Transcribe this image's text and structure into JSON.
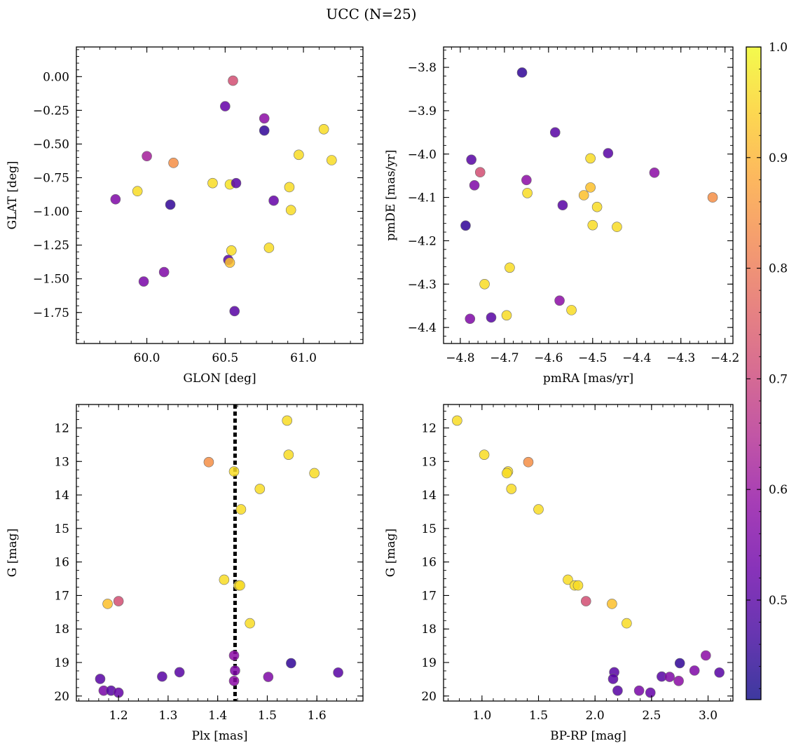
{
  "figure": {
    "title": "UCC (N=25)"
  },
  "colorbar": {
    "range": [
      0.41,
      1.0
    ],
    "ticks": [
      0.5,
      0.6,
      0.7,
      0.8,
      0.9,
      1.0
    ],
    "tick_labels": [
      "0.5",
      "0.6",
      "0.7",
      "0.8",
      "0.9",
      "1.0"
    ],
    "colormap": "plasma"
  },
  "chart_data": [
    {
      "type": "scatter",
      "panel": "top-left",
      "xlabel": "GLON [deg]",
      "ylabel": "GLAT [deg]",
      "xlim": [
        59.55,
        61.38
      ],
      "ylim": [
        -1.98,
        0.22
      ],
      "xticks": [
        60.0,
        60.5,
        61.0
      ],
      "xtick_labels": [
        "60.0",
        "60.5",
        "61.0"
      ],
      "yticks": [
        0.0,
        -0.25,
        -0.5,
        -0.75,
        -1.0,
        -1.25,
        -1.5,
        -1.75
      ],
      "ytick_labels": [
        "0.00",
        "−0.25",
        "−0.50",
        "−0.75",
        "−1.00",
        "−1.25",
        "−1.50",
        "−1.75"
      ],
      "points": [
        {
          "x": 60.55,
          "y": -0.03,
          "c": 0.72
        },
        {
          "x": 60.5,
          "y": -0.22,
          "c": 0.52
        },
        {
          "x": 60.75,
          "y": -0.31,
          "c": 0.58
        },
        {
          "x": 60.75,
          "y": -0.4,
          "c": 0.45
        },
        {
          "x": 61.13,
          "y": -0.39,
          "c": 0.96
        },
        {
          "x": 60.97,
          "y": -0.58,
          "c": 0.96
        },
        {
          "x": 61.18,
          "y": -0.62,
          "c": 0.96
        },
        {
          "x": 60.0,
          "y": -0.59,
          "c": 0.62
        },
        {
          "x": 60.17,
          "y": -0.64,
          "c": 0.84
        },
        {
          "x": 60.42,
          "y": -0.79,
          "c": 0.96
        },
        {
          "x": 60.53,
          "y": -0.8,
          "c": 0.97
        },
        {
          "x": 60.57,
          "y": -0.79,
          "c": 0.5
        },
        {
          "x": 60.91,
          "y": -0.82,
          "c": 0.96
        },
        {
          "x": 59.94,
          "y": -0.85,
          "c": 0.96
        },
        {
          "x": 59.8,
          "y": -0.91,
          "c": 0.56
        },
        {
          "x": 60.15,
          "y": -0.95,
          "c": 0.45
        },
        {
          "x": 60.81,
          "y": -0.92,
          "c": 0.52
        },
        {
          "x": 60.92,
          "y": -0.99,
          "c": 0.96
        },
        {
          "x": 60.54,
          "y": -1.29,
          "c": 0.96
        },
        {
          "x": 60.78,
          "y": -1.27,
          "c": 0.96
        },
        {
          "x": 60.52,
          "y": -1.36,
          "c": 0.5
        },
        {
          "x": 60.53,
          "y": -1.38,
          "c": 0.92
        },
        {
          "x": 60.11,
          "y": -1.45,
          "c": 0.56
        },
        {
          "x": 59.98,
          "y": -1.52,
          "c": 0.55
        },
        {
          "x": 60.56,
          "y": -1.74,
          "c": 0.5
        }
      ]
    },
    {
      "type": "scatter",
      "panel": "top-right",
      "xlabel": "pmRA [mas/yr]",
      "ylabel": "pmDE [mas/yr]",
      "xlim": [
        -4.838,
        -4.182
      ],
      "ylim": [
        -4.437,
        -3.753
      ],
      "xticks": [
        -4.8,
        -4.7,
        -4.6,
        -4.5,
        -4.4,
        -4.3,
        -4.2
      ],
      "xtick_labels": [
        "−4.8",
        "−4.7",
        "−4.6",
        "−4.5",
        "−4.4",
        "−4.3",
        "−4.2"
      ],
      "yticks": [
        -3.8,
        -3.9,
        -4.0,
        -4.1,
        -4.2,
        -4.3,
        -4.4
      ],
      "ytick_labels": [
        "−3.8",
        "−3.9",
        "−4.0",
        "−4.1",
        "−4.2",
        "−4.3",
        "−4.4"
      ],
      "points": [
        {
          "x": -4.66,
          "y": -3.812,
          "c": 0.45
        },
        {
          "x": -4.585,
          "y": -3.95,
          "c": 0.5
        },
        {
          "x": -4.465,
          "y": -3.998,
          "c": 0.5
        },
        {
          "x": -4.775,
          "y": -4.013,
          "c": 0.5
        },
        {
          "x": -4.505,
          "y": -4.01,
          "c": 0.96
        },
        {
          "x": -4.755,
          "y": -4.042,
          "c": 0.72
        },
        {
          "x": -4.36,
          "y": -4.043,
          "c": 0.58
        },
        {
          "x": -4.65,
          "y": -4.06,
          "c": 0.58
        },
        {
          "x": -4.768,
          "y": -4.072,
          "c": 0.56
        },
        {
          "x": -4.505,
          "y": -4.077,
          "c": 0.92
        },
        {
          "x": -4.648,
          "y": -4.09,
          "c": 0.96
        },
        {
          "x": -4.52,
          "y": -4.095,
          "c": 0.92
        },
        {
          "x": -4.228,
          "y": -4.1,
          "c": 0.84
        },
        {
          "x": -4.568,
          "y": -4.118,
          "c": 0.5
        },
        {
          "x": -4.49,
          "y": -4.122,
          "c": 0.96
        },
        {
          "x": -4.5,
          "y": -4.164,
          "c": 0.96
        },
        {
          "x": -4.445,
          "y": -4.168,
          "c": 0.96
        },
        {
          "x": -4.788,
          "y": -4.165,
          "c": 0.45
        },
        {
          "x": -4.688,
          "y": -4.262,
          "c": 0.96
        },
        {
          "x": -4.745,
          "y": -4.3,
          "c": 0.96
        },
        {
          "x": -4.575,
          "y": -4.338,
          "c": 0.58
        },
        {
          "x": -4.548,
          "y": -4.36,
          "c": 0.96
        },
        {
          "x": -4.695,
          "y": -4.372,
          "c": 0.96
        },
        {
          "x": -4.778,
          "y": -4.38,
          "c": 0.56
        },
        {
          "x": -4.73,
          "y": -4.377,
          "c": 0.5
        }
      ]
    },
    {
      "type": "scatter",
      "panel": "bottom-left",
      "xlabel": "Plx [mas]",
      "ylabel": "G [mag]",
      "xlim": [
        1.115,
        1.693
      ],
      "ylim": [
        20.15,
        11.3
      ],
      "xticks": [
        1.2,
        1.3,
        1.4,
        1.5,
        1.6
      ],
      "xtick_labels": [
        "1.2",
        "1.3",
        "1.4",
        "1.5",
        "1.6"
      ],
      "yticks": [
        12,
        13,
        14,
        15,
        16,
        17,
        18,
        19,
        20
      ],
      "ytick_labels": [
        "12",
        "13",
        "14",
        "15",
        "16",
        "17",
        "18",
        "19",
        "20"
      ],
      "vline": 1.435,
      "points": [
        {
          "x": 1.54,
          "y": 11.78,
          "c": 0.96
        },
        {
          "x": 1.382,
          "y": 13.02,
          "c": 0.84
        },
        {
          "x": 1.543,
          "y": 12.8,
          "c": 0.96
        },
        {
          "x": 1.595,
          "y": 13.35,
          "c": 0.96
        },
        {
          "x": 1.433,
          "y": 13.3,
          "c": 0.96
        },
        {
          "x": 1.485,
          "y": 13.82,
          "c": 0.96
        },
        {
          "x": 1.447,
          "y": 14.43,
          "c": 0.96
        },
        {
          "x": 1.413,
          "y": 16.53,
          "c": 0.96
        },
        {
          "x": 1.442,
          "y": 16.7,
          "c": 0.96
        },
        {
          "x": 1.445,
          "y": 16.7,
          "c": 0.96
        },
        {
          "x": 1.178,
          "y": 17.25,
          "c": 0.92
        },
        {
          "x": 1.2,
          "y": 17.17,
          "c": 0.72
        },
        {
          "x": 1.465,
          "y": 17.83,
          "c": 0.96
        },
        {
          "x": 1.433,
          "y": 18.79,
          "c": 0.58
        },
        {
          "x": 1.548,
          "y": 19.02,
          "c": 0.45
        },
        {
          "x": 1.435,
          "y": 19.24,
          "c": 0.56
        },
        {
          "x": 1.323,
          "y": 19.29,
          "c": 0.5
        },
        {
          "x": 1.643,
          "y": 19.3,
          "c": 0.5
        },
        {
          "x": 1.288,
          "y": 19.42,
          "c": 0.5
        },
        {
          "x": 1.502,
          "y": 19.43,
          "c": 0.56
        },
        {
          "x": 1.163,
          "y": 19.49,
          "c": 0.5
        },
        {
          "x": 1.433,
          "y": 19.55,
          "c": 0.58
        },
        {
          "x": 1.17,
          "y": 19.84,
          "c": 0.55
        },
        {
          "x": 1.185,
          "y": 19.84,
          "c": 0.5
        },
        {
          "x": 1.2,
          "y": 19.9,
          "c": 0.52
        }
      ]
    },
    {
      "type": "scatter",
      "panel": "bottom-right",
      "xlabel": "BP-RP [mag]",
      "ylabel": "G [mag]",
      "xlim": [
        0.66,
        3.22
      ],
      "ylim": [
        20.15,
        11.3
      ],
      "xticks": [
        1.0,
        1.5,
        2.0,
        2.5,
        3.0
      ],
      "xtick_labels": [
        "1.0",
        "1.5",
        "2.0",
        "2.5",
        "3.0"
      ],
      "yticks": [
        12,
        13,
        14,
        15,
        16,
        17,
        18,
        19,
        20
      ],
      "ytick_labels": [
        "12",
        "13",
        "14",
        "15",
        "16",
        "17",
        "18",
        "19",
        "20"
      ],
      "points": [
        {
          "x": 0.78,
          "y": 11.78,
          "c": 0.96
        },
        {
          "x": 1.02,
          "y": 12.8,
          "c": 0.96
        },
        {
          "x": 1.41,
          "y": 13.02,
          "c": 0.84
        },
        {
          "x": 1.23,
          "y": 13.3,
          "c": 0.96
        },
        {
          "x": 1.22,
          "y": 13.35,
          "c": 0.96
        },
        {
          "x": 1.26,
          "y": 13.82,
          "c": 0.96
        },
        {
          "x": 1.5,
          "y": 14.43,
          "c": 0.96
        },
        {
          "x": 1.76,
          "y": 16.53,
          "c": 0.96
        },
        {
          "x": 1.82,
          "y": 16.7,
          "c": 0.96
        },
        {
          "x": 1.85,
          "y": 16.7,
          "c": 0.96
        },
        {
          "x": 1.92,
          "y": 17.17,
          "c": 0.72
        },
        {
          "x": 2.15,
          "y": 17.25,
          "c": 0.92
        },
        {
          "x": 2.28,
          "y": 17.83,
          "c": 0.96
        },
        {
          "x": 2.98,
          "y": 18.79,
          "c": 0.58
        },
        {
          "x": 2.75,
          "y": 19.02,
          "c": 0.45
        },
        {
          "x": 2.88,
          "y": 19.24,
          "c": 0.56
        },
        {
          "x": 2.17,
          "y": 19.29,
          "c": 0.5
        },
        {
          "x": 3.1,
          "y": 19.3,
          "c": 0.5
        },
        {
          "x": 2.59,
          "y": 19.42,
          "c": 0.5
        },
        {
          "x": 2.66,
          "y": 19.43,
          "c": 0.56
        },
        {
          "x": 2.16,
          "y": 19.49,
          "c": 0.5
        },
        {
          "x": 2.74,
          "y": 19.55,
          "c": 0.58
        },
        {
          "x": 2.39,
          "y": 19.84,
          "c": 0.55
        },
        {
          "x": 2.2,
          "y": 19.84,
          "c": 0.5
        },
        {
          "x": 2.49,
          "y": 19.9,
          "c": 0.52
        }
      ]
    }
  ]
}
